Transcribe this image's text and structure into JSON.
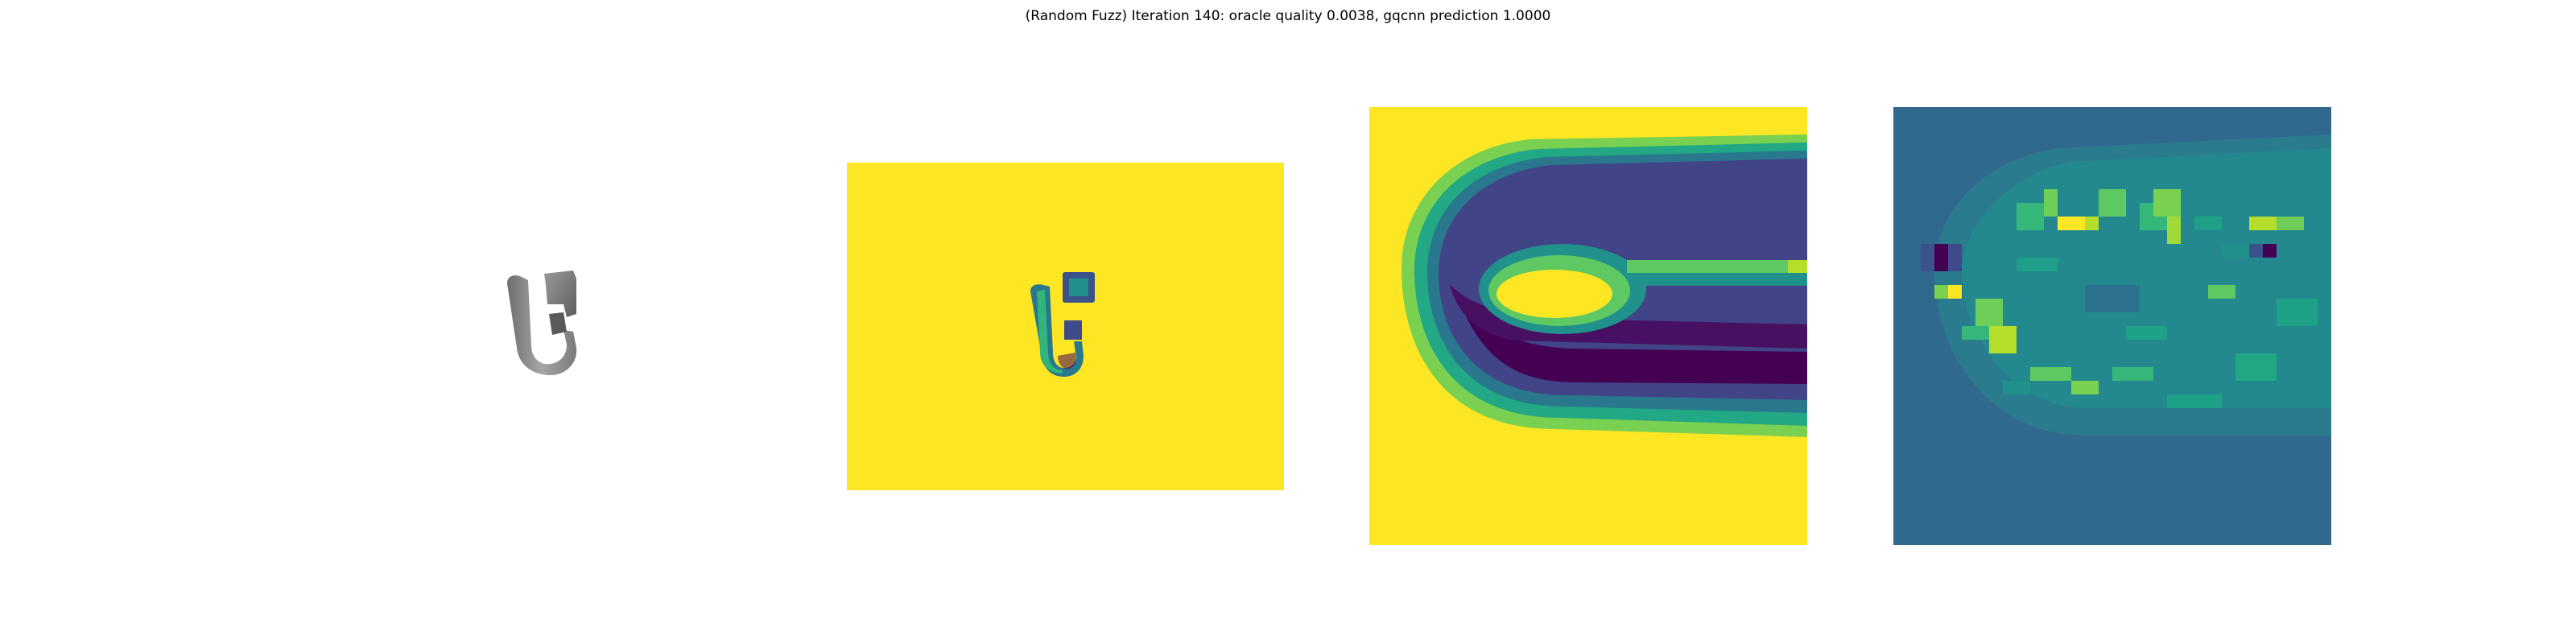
{
  "figure": {
    "title": "(Random Fuzz) Iteration 140: oracle quality 0.0038, gqcnn prediction 1.0000"
  },
  "colors": {
    "viridis_yellow": "#fde725",
    "viridis_green": "#5ec962",
    "viridis_teal": "#21918c",
    "viridis_blue": "#3b528b",
    "viridis_purple": "#440154",
    "fuzz_background": "#31688e",
    "object_grey": "#8a8a8a"
  },
  "panels": [
    {
      "id": "rgb-render",
      "content": "grey 3D object render"
    },
    {
      "id": "depth-image",
      "content": "depth image of object"
    },
    {
      "id": "depth-crop",
      "content": "cropped depth image around grasp"
    },
    {
      "id": "fuzz-map",
      "content": "random fuzz perturbation map"
    }
  ]
}
